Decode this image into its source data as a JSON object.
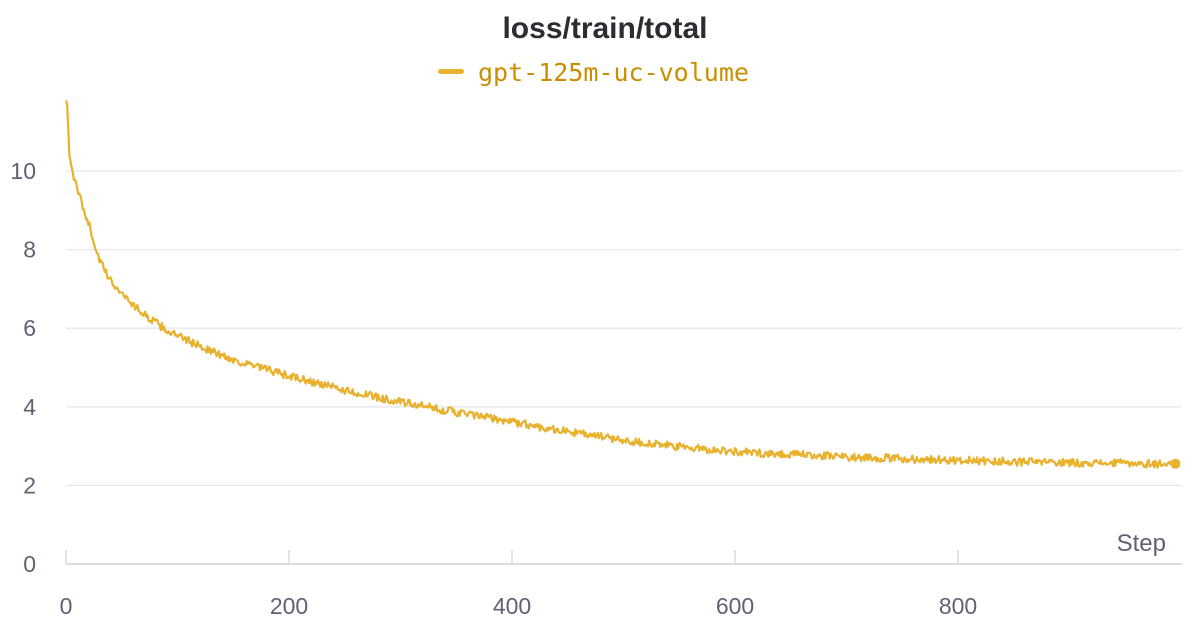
{
  "chart_data": {
    "type": "line",
    "title": "loss/train/total",
    "xlabel": "Step",
    "ylabel": "",
    "xlim": [
      0,
      1000
    ],
    "ylim": [
      0,
      12
    ],
    "x_ticks": [
      0,
      200,
      400,
      600,
      800
    ],
    "y_ticks": [
      0,
      2,
      4,
      6,
      8,
      10
    ],
    "grid": "horizontal",
    "legend_position": "top-center",
    "colors": {
      "series": "#e8b12e",
      "legend_text": "#c98f00",
      "grid": "#e6e7ea",
      "axis": "#dadce2",
      "tick_label": "#5f6272",
      "title": "#2b2d33"
    },
    "series": [
      {
        "name": "gpt-125m-uc-volume",
        "x": [
          0,
          1,
          2,
          3,
          5,
          8,
          10,
          13,
          15,
          20,
          25,
          30,
          35,
          40,
          50,
          60,
          70,
          80,
          90,
          100,
          120,
          140,
          160,
          180,
          200,
          225,
          250,
          275,
          300,
          325,
          350,
          375,
          400,
          425,
          450,
          475,
          500,
          525,
          550,
          575,
          600,
          625,
          650,
          675,
          700,
          725,
          750,
          775,
          800,
          825,
          850,
          875,
          900,
          925,
          950,
          975,
          995
        ],
        "y": [
          11.8,
          11.7,
          11.1,
          10.4,
          10.1,
          9.75,
          9.5,
          9.3,
          9.1,
          8.7,
          8.2,
          7.75,
          7.45,
          7.2,
          6.9,
          6.6,
          6.35,
          6.15,
          5.95,
          5.8,
          5.55,
          5.3,
          5.1,
          4.95,
          4.78,
          4.6,
          4.42,
          4.27,
          4.12,
          3.99,
          3.86,
          3.74,
          3.62,
          3.49,
          3.37,
          3.26,
          3.15,
          3.06,
          2.98,
          2.92,
          2.86,
          2.82,
          2.79,
          2.76,
          2.73,
          2.7,
          2.68,
          2.66,
          2.64,
          2.62,
          2.6,
          2.59,
          2.58,
          2.57,
          2.56,
          2.55,
          2.55
        ]
      }
    ]
  }
}
